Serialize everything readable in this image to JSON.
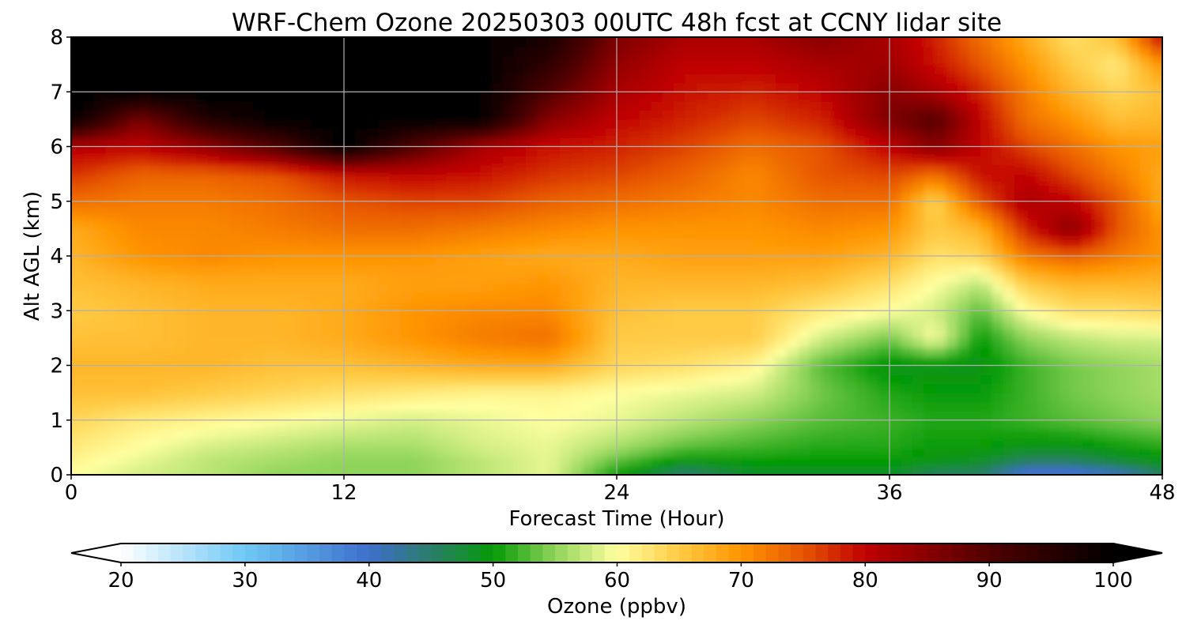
{
  "chart_data": {
    "type": "heatmap",
    "title": "WRF-Chem Ozone  20250303 00UTC 48h fcst at CCNY lidar site",
    "xlabel": "Forecast Time (Hour)",
    "ylabel": "Alt AGL (km)",
    "xlim": [
      0,
      48
    ],
    "ylim": [
      0,
      8
    ],
    "x_ticks": [
      "0",
      "12",
      "24",
      "36",
      "48"
    ],
    "y_ticks": [
      "0",
      "1",
      "2",
      "3",
      "4",
      "5",
      "6",
      "7",
      "8"
    ],
    "grid": true,
    "colorbar": {
      "label": "Ozone  (ppbv)",
      "min": 20,
      "max": 100,
      "extend": "both",
      "ticks": [
        "20",
        "30",
        "40",
        "50",
        "60",
        "70",
        "80",
        "90",
        "100"
      ],
      "stops": [
        [
          20,
          "#ffffff"
        ],
        [
          30,
          "#6ec8f5"
        ],
        [
          40,
          "#3d6fcc"
        ],
        [
          45,
          "#2a7d6a"
        ],
        [
          50,
          "#059a05"
        ],
        [
          55,
          "#8fd45a"
        ],
        [
          60,
          "#ffffa0"
        ],
        [
          65,
          "#ffcb45"
        ],
        [
          70,
          "#ff9500"
        ],
        [
          75,
          "#e65500"
        ],
        [
          80,
          "#c00000"
        ],
        [
          90,
          "#500000"
        ],
        [
          100,
          "#000000"
        ]
      ]
    },
    "field_approx": {
      "x_hours": [
        0,
        3,
        6,
        9,
        12,
        15,
        18,
        21,
        24,
        27,
        30,
        33,
        36,
        38,
        40,
        42,
        44,
        46,
        48
      ],
      "y_km": [
        0,
        0.25,
        0.5,
        1,
        1.5,
        2,
        2.5,
        3,
        3.5,
        4,
        4.5,
        5,
        5.5,
        6,
        6.5,
        7,
        7.5,
        8
      ],
      "values_ppbv": [
        [
          60,
          58,
          57,
          55,
          55,
          55,
          57,
          59,
          50,
          44,
          48,
          48,
          48,
          45,
          45,
          38,
          38,
          40,
          45
        ],
        [
          61,
          59,
          57,
          56,
          55,
          55,
          57,
          59,
          53,
          49,
          50,
          50,
          50,
          49,
          48,
          45,
          45,
          47,
          49
        ],
        [
          62,
          60,
          58,
          57,
          56,
          56,
          58,
          59,
          56,
          53,
          52,
          51,
          51,
          50,
          50,
          49,
          49,
          50,
          51
        ],
        [
          64,
          62,
          61,
          60,
          59,
          58,
          59,
          60,
          59,
          57,
          55,
          53,
          52,
          51,
          51,
          52,
          53,
          54,
          55
        ],
        [
          66,
          66,
          65,
          64,
          63,
          62,
          61,
          61,
          60,
          59,
          58,
          54,
          51,
          50,
          50,
          52,
          54,
          55,
          56
        ],
        [
          67,
          67,
          67,
          66,
          66,
          67,
          68,
          68,
          64,
          63,
          61,
          53,
          49,
          49,
          49,
          52,
          54,
          55,
          56
        ],
        [
          66,
          66,
          67,
          67,
          68,
          70,
          72,
          73,
          65,
          65,
          65,
          58,
          54,
          60,
          50,
          55,
          57,
          58,
          58
        ],
        [
          65,
          66,
          67,
          67,
          68,
          70,
          71,
          71,
          66,
          65,
          65,
          62,
          60,
          58,
          53,
          60,
          63,
          63,
          64
        ],
        [
          66,
          67,
          68,
          68,
          68,
          69,
          69,
          70,
          67,
          67,
          67,
          66,
          63,
          60,
          57,
          65,
          67,
          67,
          67
        ],
        [
          67,
          70,
          71,
          70,
          70,
          70,
          69,
          68,
          68,
          69,
          69,
          69,
          67,
          63,
          64,
          72,
          74,
          72,
          70
        ],
        [
          68,
          71,
          71,
          72,
          73,
          73,
          72,
          71,
          70,
          70,
          70,
          71,
          70,
          65,
          67,
          78,
          85,
          75,
          70
        ],
        [
          73,
          72,
          72,
          73,
          75,
          76,
          76,
          74,
          73,
          72,
          71,
          73,
          73,
          64,
          75,
          82,
          80,
          75,
          68
        ],
        [
          77,
          74,
          74,
          75,
          79,
          80,
          79,
          77,
          76,
          74,
          71,
          75,
          76,
          73,
          79,
          80,
          76,
          72,
          68
        ],
        [
          81,
          80,
          84,
          90,
          100,
          90,
          82,
          79,
          78,
          76,
          73,
          75,
          80,
          85,
          80,
          76,
          73,
          70,
          69
        ],
        [
          100,
          86,
          96,
          100,
          100,
          100,
          100,
          85,
          80,
          78,
          76,
          78,
          86,
          90,
          80,
          73,
          70,
          66,
          67
        ],
        [
          100,
          100,
          100,
          100,
          100,
          100,
          100,
          90,
          82,
          79,
          78,
          80,
          85,
          82,
          78,
          72,
          67,
          64,
          66
        ],
        [
          100,
          100,
          100,
          100,
          100,
          100,
          100,
          94,
          84,
          80,
          80,
          82,
          83,
          79,
          75,
          70,
          65,
          62,
          70
        ],
        [
          100,
          100,
          100,
          100,
          100,
          100,
          100,
          97,
          86,
          82,
          82,
          85,
          82,
          78,
          73,
          68,
          63,
          66,
          80
        ]
      ]
    }
  }
}
